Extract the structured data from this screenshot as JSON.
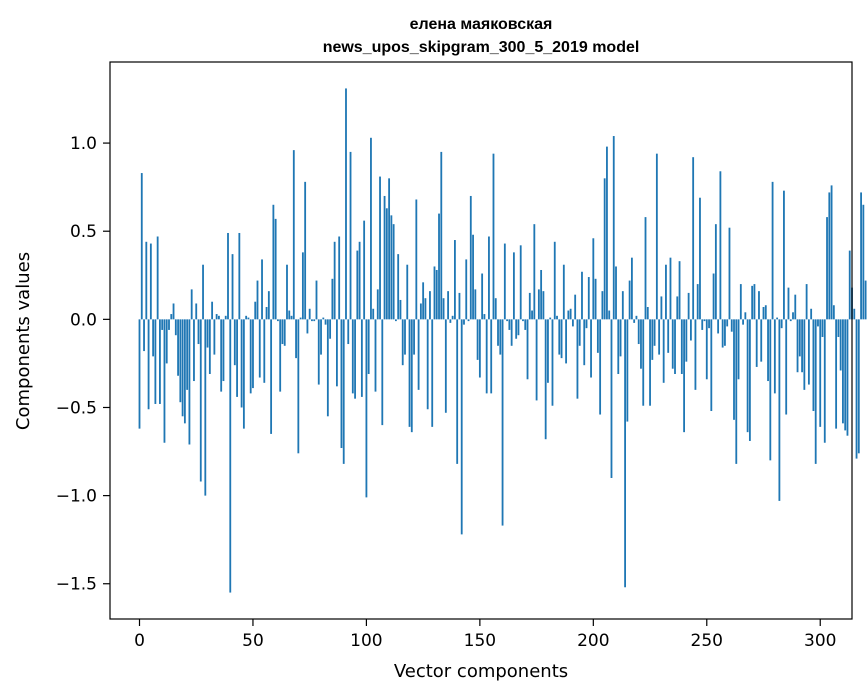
{
  "chart_data": {
    "type": "bar",
    "title": "елена маяковская",
    "subtitle": "news_upos_skipgram_300_5_2019 model",
    "xlabel": "Vector components",
    "ylabel": "Components values",
    "xlim": [
      -13,
      314
    ],
    "ylim": [
      -1.7,
      1.46
    ],
    "xticks": [
      0,
      50,
      100,
      150,
      200,
      250,
      300
    ],
    "yticks": [
      -1.5,
      -1.0,
      -0.5,
      0.0,
      0.5,
      1.0
    ],
    "ytick_labels": [
      "−1.5",
      "−1.0",
      "−0.5",
      "0.0",
      "0.5",
      "1.0"
    ],
    "grid": false,
    "bar_color": "#1f77b4",
    "values": [
      -0.62,
      0.83,
      -0.18,
      0.44,
      -0.51,
      0.43,
      -0.21,
      -0.48,
      0.47,
      -0.48,
      -0.06,
      -0.7,
      -0.25,
      -0.06,
      0.03,
      0.09,
      -0.09,
      -0.32,
      -0.47,
      -0.55,
      -0.59,
      -0.4,
      -0.71,
      0.17,
      -0.35,
      0.09,
      -0.14,
      -0.92,
      0.31,
      -1.0,
      -0.16,
      -0.31,
      0.1,
      -0.2,
      0.03,
      0.02,
      -0.41,
      -0.35,
      0.02,
      0.49,
      -1.55,
      0.37,
      -0.26,
      -0.44,
      0.49,
      -0.5,
      -0.62,
      0.02,
      0.01,
      -0.42,
      -0.39,
      0.1,
      0.22,
      -0.33,
      0.34,
      -0.36,
      0.07,
      0.16,
      -0.65,
      0.65,
      0.57,
      -0.01,
      -0.41,
      -0.14,
      -0.15,
      0.31,
      0.05,
      0.02,
      0.96,
      -0.22,
      -0.76,
      0.01,
      0.38,
      0.78,
      -0.08,
      0.06,
      -0.01,
      -0.01,
      0.22,
      -0.37,
      -0.2,
      0.01,
      -0.03,
      -0.55,
      -0.11,
      0.23,
      0.44,
      -0.38,
      0.47,
      -0.73,
      -0.82,
      1.31,
      -0.14,
      0.95,
      -0.42,
      -0.45,
      0.39,
      0.44,
      -0.44,
      0.56,
      -1.01,
      -0.31,
      1.03,
      0.06,
      -0.41,
      0.17,
      0.81,
      -0.6,
      0.7,
      0.63,
      0.8,
      0.59,
      0.54,
      -0.01,
      0.37,
      0.11,
      -0.26,
      -0.2,
      0.31,
      -0.61,
      -0.64,
      -0.2,
      0.68,
      -0.4,
      0.09,
      0.21,
      0.12,
      -0.51,
      0.16,
      -0.61,
      0.3,
      0.28,
      0.6,
      0.95,
      0.12,
      -0.53,
      0.16,
      -0.02,
      0.02,
      0.45,
      -0.82,
      0.15,
      -1.22,
      -0.03,
      0.34,
      -0.01,
      0.7,
      0.48,
      0.17,
      -0.23,
      -0.33,
      0.26,
      0.03,
      -0.42,
      0.47,
      -0.42,
      0.94,
      0.12,
      -0.15,
      -0.2,
      -1.17,
      0.43,
      -0.01,
      -0.06,
      -0.15,
      0.38,
      -0.11,
      -0.09,
      0.42,
      -0.01,
      -0.06,
      -0.34,
      0.15,
      0.05,
      0.54,
      -0.46,
      0.17,
      0.28,
      0.16,
      -0.68,
      -0.36,
      0.01,
      -0.49,
      0.44,
      0.02,
      -0.2,
      -0.22,
      0.31,
      -0.25,
      0.05,
      0.06,
      -0.04,
      0.14,
      -0.45,
      -0.15,
      0.27,
      -0.26,
      -0.05,
      0.24,
      -0.33,
      0.46,
      0.23,
      -0.19,
      -0.54,
      0.16,
      0.8,
      0.98,
      0.05,
      -0.9,
      1.04,
      0.3,
      -0.31,
      -0.21,
      0.16,
      -1.52,
      -0.58,
      0.22,
      0.35,
      -0.02,
      0.02,
      -0.14,
      -0.28,
      -0.49,
      0.58,
      0.07,
      -0.49,
      -0.23,
      -0.15,
      0.94,
      -0.2,
      0.13,
      -0.36,
      0.31,
      -0.19,
      0.35,
      -0.28,
      -0.31,
      0.13,
      0.33,
      -0.31,
      -0.64,
      -0.24,
      0.15,
      -0.12,
      0.92,
      -0.4,
      0.2,
      0.69,
      -0.06,
      -0.01,
      -0.34,
      -0.05,
      -0.52,
      0.26,
      0.54,
      -0.08,
      0.84,
      -0.16,
      -0.15,
      -0.04,
      0.52,
      -0.07,
      -0.57,
      -0.82,
      -0.34,
      0.2,
      -0.03,
      0.04,
      -0.64,
      -0.69,
      0.19,
      0.2,
      -0.27,
      0.16,
      -0.24,
      0.07,
      0.08,
      -0.35,
      -0.8,
      0.78,
      -0.42,
      0.01,
      -1.03,
      -0.05,
      0.73,
      -0.54,
      0.18,
      -0.01,
      0.04,
      0.14,
      -0.3,
      -0.21,
      -0.3,
      -0.4,
      0.2,
      -0.37,
      0.06,
      -0.52,
      -0.82,
      -0.04,
      -0.61,
      -0.1,
      -0.7,
      0.58,
      0.72,
      0.76,
      0.08,
      -0.62,
      -0.1,
      -0.29,
      -0.59,
      -0.63,
      -0.66,
      0.39,
      0.18,
      0.06,
      -0.79,
      -0.76,
      0.72,
      0.65,
      0.22
    ]
  }
}
